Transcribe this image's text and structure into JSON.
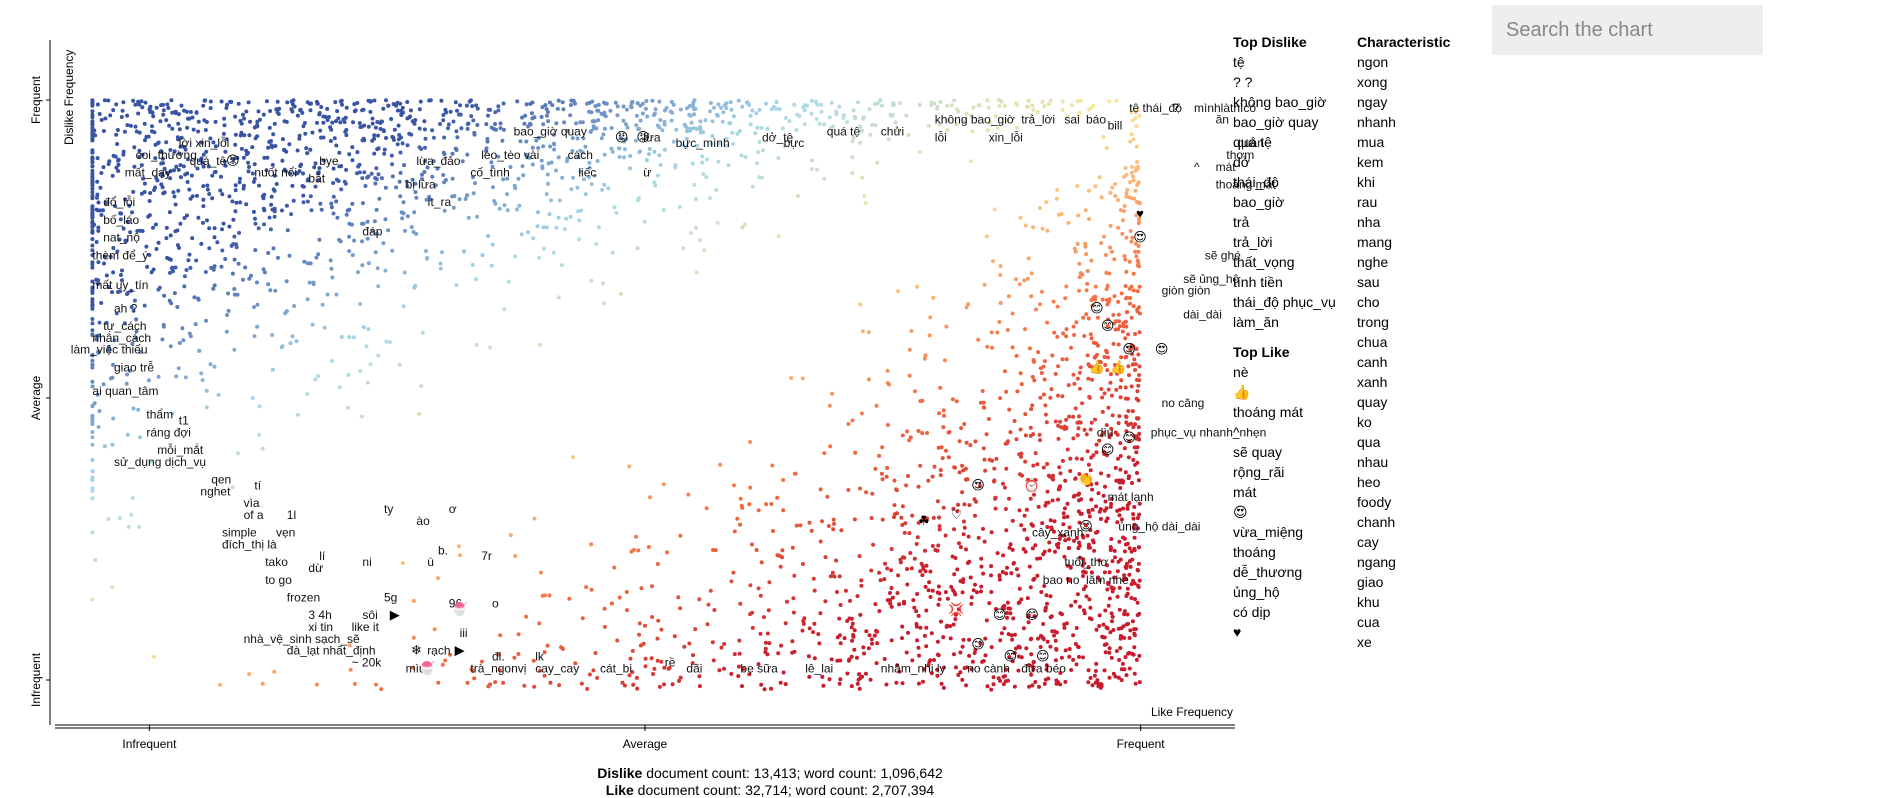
{
  "chart_data": {
    "type": "scatter",
    "xlabel": "Like Frequency",
    "ylabel": "Dislike Frequency",
    "x_ticks": [
      "Infrequent",
      "Average",
      "Frequent"
    ],
    "y_ticks": [
      "Frequent",
      "Average",
      "Infrequent"
    ],
    "xlim": [
      0,
      1
    ],
    "ylim": [
      0,
      1
    ],
    "color_scale": {
      "dislike_end": "#3a54a4",
      "neutral": "#fee79a",
      "like_end": "#c71d2d"
    },
    "labels": [
      {
        "text": "coi_thường",
        "x": 0.07,
        "y": 0.9
      },
      {
        "text": "lời xin_lỗi",
        "x": 0.11,
        "y": 0.92
      },
      {
        "text": "quá_tệ",
        "x": 0.12,
        "y": 0.89
      },
      {
        "text": "mất_dạy",
        "x": 0.06,
        "y": 0.87
      },
      {
        "text": "bye",
        "x": 0.24,
        "y": 0.89
      },
      {
        "text": "bắt",
        "x": 0.23,
        "y": 0.86
      },
      {
        "text": "nuốt nổi",
        "x": 0.18,
        "y": 0.87
      },
      {
        "text": "lừa_đảo",
        "x": 0.33,
        "y": 0.89
      },
      {
        "text": "bị lừa",
        "x": 0.32,
        "y": 0.85
      },
      {
        "text": "ít_ra",
        "x": 0.34,
        "y": 0.82
      },
      {
        "text": "lèo_tèo vài",
        "x": 0.39,
        "y": 0.9
      },
      {
        "text": "cố_tình",
        "x": 0.38,
        "y": 0.87
      },
      {
        "text": "bao_giờ quay",
        "x": 0.42,
        "y": 0.94
      },
      {
        "text": "cách",
        "x": 0.47,
        "y": 0.9
      },
      {
        "text": "liếc",
        "x": 0.48,
        "y": 0.87
      },
      {
        "text": "lừa",
        "x": 0.54,
        "y": 0.93
      },
      {
        "text": "ừ",
        "x": 0.54,
        "y": 0.87
      },
      {
        "text": "bực_mình",
        "x": 0.57,
        "y": 0.92
      },
      {
        "text": "dở_tệ",
        "x": 0.65,
        "y": 0.93
      },
      {
        "text": "bực",
        "x": 0.67,
        "y": 0.92
      },
      {
        "text": "quá tệ",
        "x": 0.71,
        "y": 0.94
      },
      {
        "text": "chửi",
        "x": 0.76,
        "y": 0.94
      },
      {
        "text": "không bao_giờ",
        "x": 0.81,
        "y": 0.96
      },
      {
        "text": "lỗi",
        "x": 0.81,
        "y": 0.93
      },
      {
        "text": "xin_lỗi",
        "x": 0.86,
        "y": 0.93
      },
      {
        "text": "trả_lời",
        "x": 0.89,
        "y": 0.96
      },
      {
        "text": "sai",
        "x": 0.93,
        "y": 0.96
      },
      {
        "text": "báo",
        "x": 0.95,
        "y": 0.96
      },
      {
        "text": "bill",
        "x": 0.97,
        "y": 0.95
      },
      {
        "text": "tệ thái_độ",
        "x": 0.99,
        "y": 0.98
      },
      {
        "text": "?",
        "x": 1.03,
        "y": 0.98
      },
      {
        "text": "mìnhlàthìcó",
        "x": 1.05,
        "y": 0.98
      },
      {
        "text": "ăn",
        "x": 1.07,
        "y": 0.96
      },
      {
        "text": "quán",
        "x": 1.09,
        "y": 0.92
      },
      {
        "text": "thơm",
        "x": 1.08,
        "y": 0.9
      },
      {
        "text": "^",
        "x": 1.05,
        "y": 0.88
      },
      {
        "text": "mát",
        "x": 1.07,
        "y": 0.88
      },
      {
        "text": "thoáng mát",
        "x": 1.07,
        "y": 0.85
      },
      {
        "text": "đổ_lỗi",
        "x": 0.04,
        "y": 0.82
      },
      {
        "text": "bố_láo",
        "x": 0.04,
        "y": 0.79
      },
      {
        "text": "nat_nộ",
        "x": 0.04,
        "y": 0.76
      },
      {
        "text": "thèm để_ý",
        "x": 0.03,
        "y": 0.73
      },
      {
        "text": "đáp",
        "x": 0.28,
        "y": 0.77
      },
      {
        "text": "mất uy_tín",
        "x": 0.03,
        "y": 0.68
      },
      {
        "text": "ah ?",
        "x": 0.05,
        "y": 0.64
      },
      {
        "text": "tự_cách",
        "x": 0.04,
        "y": 0.61
      },
      {
        "text": "nhân_cách",
        "x": 0.03,
        "y": 0.59
      },
      {
        "text": "làm_việc thiếu",
        "x": 0.01,
        "y": 0.57
      },
      {
        "text": "giao trễ",
        "x": 0.05,
        "y": 0.54
      },
      {
        "text": "ai quan_tâm",
        "x": 0.03,
        "y": 0.5
      },
      {
        "text": "thẩm",
        "x": 0.08,
        "y": 0.46
      },
      {
        "text": "t1",
        "x": 0.11,
        "y": 0.45
      },
      {
        "text": "ráng đợi",
        "x": 0.08,
        "y": 0.43
      },
      {
        "text": "mỗi_mắt",
        "x": 0.09,
        "y": 0.4
      },
      {
        "text": "sử_dụng dịch_vụ",
        "x": 0.05,
        "y": 0.38
      },
      {
        "text": "qen",
        "x": 0.14,
        "y": 0.35
      },
      {
        "text": "nghet",
        "x": 0.13,
        "y": 0.33
      },
      {
        "text": "tí",
        "x": 0.18,
        "y": 0.34
      },
      {
        "text": "vìa",
        "x": 0.17,
        "y": 0.31
      },
      {
        "text": "of a",
        "x": 0.17,
        "y": 0.29
      },
      {
        "text": "1l",
        "x": 0.21,
        "y": 0.29
      },
      {
        "text": "simple",
        "x": 0.15,
        "y": 0.26
      },
      {
        "text": "vẹn",
        "x": 0.2,
        "y": 0.26
      },
      {
        "text": "đích_thị là",
        "x": 0.15,
        "y": 0.24
      },
      {
        "text": "tako",
        "x": 0.19,
        "y": 0.21
      },
      {
        "text": "to go",
        "x": 0.19,
        "y": 0.18
      },
      {
        "text": "lí",
        "x": 0.24,
        "y": 0.22
      },
      {
        "text": "dừ",
        "x": 0.23,
        "y": 0.2
      },
      {
        "text": "ni",
        "x": 0.28,
        "y": 0.21
      },
      {
        "text": "ty",
        "x": 0.3,
        "y": 0.3
      },
      {
        "text": "ào",
        "x": 0.33,
        "y": 0.28
      },
      {
        "text": "ơ",
        "x": 0.36,
        "y": 0.3
      },
      {
        "text": "b.",
        "x": 0.35,
        "y": 0.23
      },
      {
        "text": "ù",
        "x": 0.34,
        "y": 0.21
      },
      {
        "text": "7r",
        "x": 0.39,
        "y": 0.22
      },
      {
        "text": "frozen",
        "x": 0.21,
        "y": 0.15
      },
      {
        "text": "5g",
        "x": 0.3,
        "y": 0.15
      },
      {
        "text": "96",
        "x": 0.36,
        "y": 0.14
      },
      {
        "text": "o",
        "x": 0.4,
        "y": 0.14
      },
      {
        "text": "3 4h",
        "x": 0.23,
        "y": 0.12
      },
      {
        "text": "xi tin",
        "x": 0.23,
        "y": 0.1
      },
      {
        "text": "sôi",
        "x": 0.28,
        "y": 0.12
      },
      {
        "text": "like it",
        "x": 0.27,
        "y": 0.1
      },
      {
        "text": "iii",
        "x": 0.37,
        "y": 0.09
      },
      {
        "text": "nhà_vệ_sinh sạch_sẽ",
        "x": 0.17,
        "y": 0.08
      },
      {
        "text": "đà_lạt nhất_định",
        "x": 0.21,
        "y": 0.06
      },
      {
        "text": "rạch",
        "x": 0.34,
        "y": 0.06
      },
      {
        "text": "lk",
        "x": 0.44,
        "y": 0.05
      },
      {
        "text": "đl.",
        "x": 0.4,
        "y": 0.05
      },
      {
        "text": "~ 20k",
        "x": 0.27,
        "y": 0.04
      },
      {
        "text": "mìu",
        "x": 0.32,
        "y": 0.03
      },
      {
        "text": "trà_ngonvị",
        "x": 0.38,
        "y": 0.03
      },
      {
        "text": "cay_cay",
        "x": 0.44,
        "y": 0.03
      },
      {
        "text": "cát_bi",
        "x": 0.5,
        "y": 0.03
      },
      {
        "text": "rề",
        "x": 0.56,
        "y": 0.04
      },
      {
        "text": "dãi",
        "x": 0.58,
        "y": 0.03
      },
      {
        "text": "bẹ sữa",
        "x": 0.63,
        "y": 0.03
      },
      {
        "text": "lê_lai",
        "x": 0.69,
        "y": 0.03
      },
      {
        "text": "nhâm_nhi ly",
        "x": 0.76,
        "y": 0.03
      },
      {
        "text": "no cành",
        "x": 0.84,
        "y": 0.03
      },
      {
        "text": "đừa béo",
        "x": 0.89,
        "y": 0.03
      },
      {
        "text": "sẽ ghé",
        "x": 1.06,
        "y": 0.73
      },
      {
        "text": "sẽ ủng_hộ",
        "x": 1.04,
        "y": 0.69
      },
      {
        "text": "giòn giòn",
        "x": 1.02,
        "y": 0.67
      },
      {
        "text": "dài_dài",
        "x": 1.04,
        "y": 0.63
      },
      {
        "text": "no căng",
        "x": 1.02,
        "y": 0.48
      },
      {
        "text": "phục_vụ nhanh_nhẹn",
        "x": 1.01,
        "y": 0.43
      },
      {
        "text": "dìu",
        "x": 0.96,
        "y": 0.43
      },
      {
        "text": "mát lạnh",
        "x": 0.97,
        "y": 0.32
      },
      {
        "text": "ủng_hộ dài_dài",
        "x": 0.98,
        "y": 0.27
      },
      {
        "text": "cây_xanh",
        "x": 0.9,
        "y": 0.26
      },
      {
        "text": "tuổi_thơ",
        "x": 0.93,
        "y": 0.21
      },
      {
        "text": "lắm nhe",
        "x": 0.95,
        "y": 0.18
      },
      {
        "text": "bao no",
        "x": 0.91,
        "y": 0.18
      }
    ],
    "emoji_marks": [
      {
        "glyph": "😡",
        "x": 0.16,
        "y": 0.89
      },
      {
        "glyph": "😡",
        "x": 0.52,
        "y": 0.93
      },
      {
        "glyph": "😡",
        "x": 0.54,
        "y": 0.93
      },
      {
        "glyph": "♥",
        "x": 1.0,
        "y": 0.8
      },
      {
        "glyph": "😍",
        "x": 1.0,
        "y": 0.76
      },
      {
        "glyph": "😊",
        "x": 0.96,
        "y": 0.64
      },
      {
        "glyph": "😊",
        "x": 0.97,
        "y": 0.61
      },
      {
        "glyph": "😍",
        "x": 0.99,
        "y": 0.57
      },
      {
        "glyph": "😍",
        "x": 1.02,
        "y": 0.57
      },
      {
        "glyph": "👍",
        "x": 0.96,
        "y": 0.54
      },
      {
        "glyph": "👍",
        "x": 0.98,
        "y": 0.54
      },
      {
        "glyph": "😊",
        "x": 0.99,
        "y": 0.42
      },
      {
        "glyph": "😊",
        "x": 0.97,
        "y": 0.4
      },
      {
        "glyph": "👏",
        "x": 0.95,
        "y": 0.35
      },
      {
        "glyph": "⏰",
        "x": 0.9,
        "y": 0.34
      },
      {
        "glyph": "😍",
        "x": 0.85,
        "y": 0.34
      },
      {
        "glyph": "☘",
        "x": 0.8,
        "y": 0.28
      },
      {
        "glyph": "♡",
        "x": 0.83,
        "y": 0.29
      },
      {
        "glyph": "😊",
        "x": 0.95,
        "y": 0.27
      },
      {
        "glyph": "😊",
        "x": 0.87,
        "y": 0.12
      },
      {
        "glyph": "😊",
        "x": 0.9,
        "y": 0.12
      },
      {
        "glyph": "💢",
        "x": 0.83,
        "y": 0.13
      },
      {
        "glyph": "😊",
        "x": 0.85,
        "y": 0.07
      },
      {
        "glyph": "😊",
        "x": 0.88,
        "y": 0.05
      },
      {
        "glyph": "😊",
        "x": 0.91,
        "y": 0.05
      },
      {
        "glyph": "❄",
        "x": 0.33,
        "y": 0.06
      },
      {
        "glyph": "🍧",
        "x": 0.34,
        "y": 0.03
      },
      {
        "glyph": "▶",
        "x": 0.31,
        "y": 0.12
      },
      {
        "glyph": "▶",
        "x": 0.37,
        "y": 0.06
      },
      {
        "glyph": "🍧",
        "x": 0.37,
        "y": 0.13
      }
    ]
  },
  "sidebar": {
    "top_dislike": {
      "heading": "Top Dislike",
      "items": [
        "tệ",
        "? ?",
        "không bao_giờ",
        "bao_giờ quay",
        "quá tệ",
        "dở",
        "thái_độ",
        "bao_giờ",
        "trả",
        "trả_lời",
        "thất_vọng",
        "tính tiền",
        "thái_độ phục_vụ",
        "làm_ăn"
      ]
    },
    "top_like": {
      "heading": "Top Like",
      "items": [
        "nè",
        "👍",
        "thoáng mát",
        "^",
        "sẽ quay",
        "rộng_rãi",
        "mát",
        "😍",
        "vừa_miệng",
        "thoáng",
        "dễ_thương",
        "ủng_hộ",
        "có dịp",
        "♥"
      ]
    },
    "characteristic": {
      "heading": "Characteristic",
      "items": [
        "ngon",
        "xong",
        "ngay",
        "nhanh",
        "mua",
        "kem",
        "khi",
        "rau",
        "nha",
        "mang",
        "nghe",
        "sau",
        "cho",
        "trong",
        "chua",
        "canh",
        "xanh",
        "quay",
        "ko",
        "qua",
        "nhau",
        "heo",
        "foody",
        "chanh",
        "cay",
        "ngang",
        "giao",
        "khu",
        "cua",
        "xe"
      ]
    }
  },
  "search": {
    "placeholder": "Search the chart",
    "value": ""
  },
  "footer": {
    "dislike_label": "Dislike",
    "dislike_stats": "document count: 13,413; word count: 1,096,642",
    "like_label": "Like",
    "like_stats": "document count: 32,714; word count: 2,707,394"
  }
}
